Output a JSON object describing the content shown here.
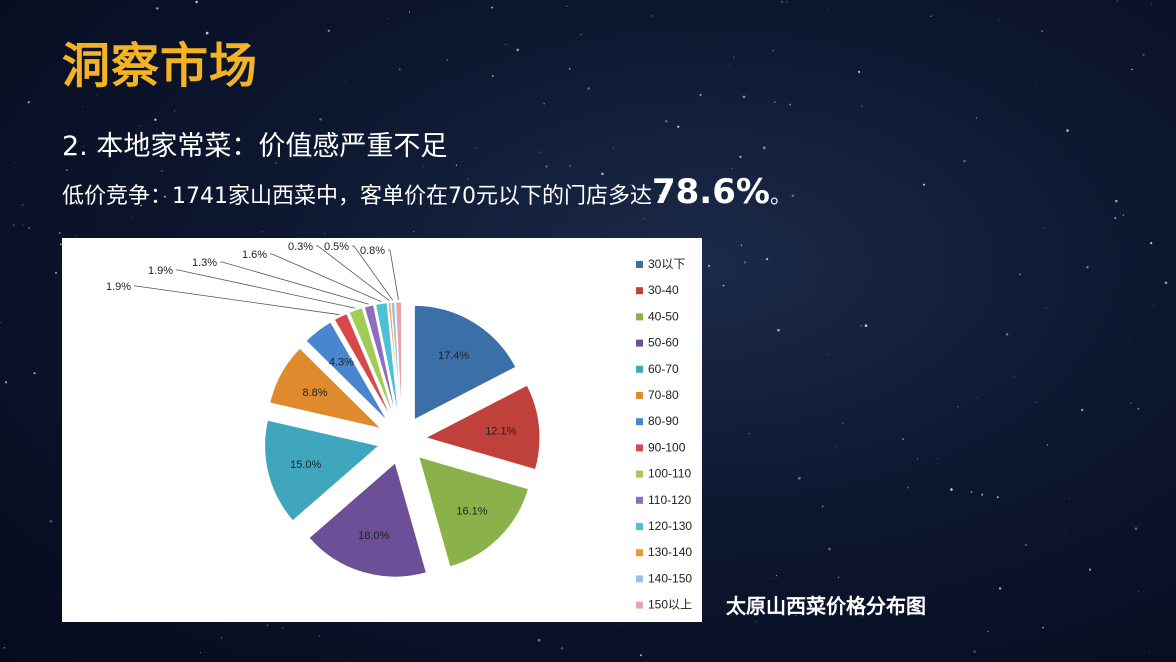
{
  "slide": {
    "title": "洞察市场",
    "subtitle": "2. 本地家常菜：价值感严重不足",
    "desc_prefix": "低价竞争：1741家山西菜中，客单价在70元以下的门店多达",
    "desc_highlight": "78.6%",
    "desc_suffix": "。",
    "caption": "太原山西菜价格分布图"
  },
  "colors": {
    "title": "#f5b324",
    "background": "#0b1430",
    "chart_background": "#ffffff"
  },
  "chart_data": {
    "type": "pie",
    "exploded": true,
    "legend_position": "right",
    "title": "",
    "categories": [
      "30以下",
      "30-40",
      "40-50",
      "50-60",
      "60-70",
      "70-80",
      "80-90",
      "90-100",
      "100-110",
      "110-120",
      "120-130",
      "130-140",
      "140-150",
      "150以上"
    ],
    "values": [
      17.4,
      12.1,
      16.1,
      18.0,
      15.0,
      8.8,
      4.3,
      1.9,
      1.9,
      1.3,
      1.6,
      0.3,
      0.5,
      0.8
    ],
    "labels": [
      "17.4%",
      "12.1%",
      "16.1%",
      "18.0%",
      "15.0%",
      "8.8%",
      "4.3%",
      "1.9%",
      "1.9%",
      "1.3%",
      "1.6%",
      "0.3%",
      "0.5%",
      "0.8%"
    ],
    "colors": [
      "#3b6fa8",
      "#c0403c",
      "#8bb14a",
      "#6c4f96",
      "#3fa6be",
      "#e08a2e",
      "#4a86d0",
      "#d8484a",
      "#a2cc55",
      "#8e6cbe",
      "#4cc0d4",
      "#f0982f",
      "#9fbfe3",
      "#e7a6a6"
    ]
  }
}
